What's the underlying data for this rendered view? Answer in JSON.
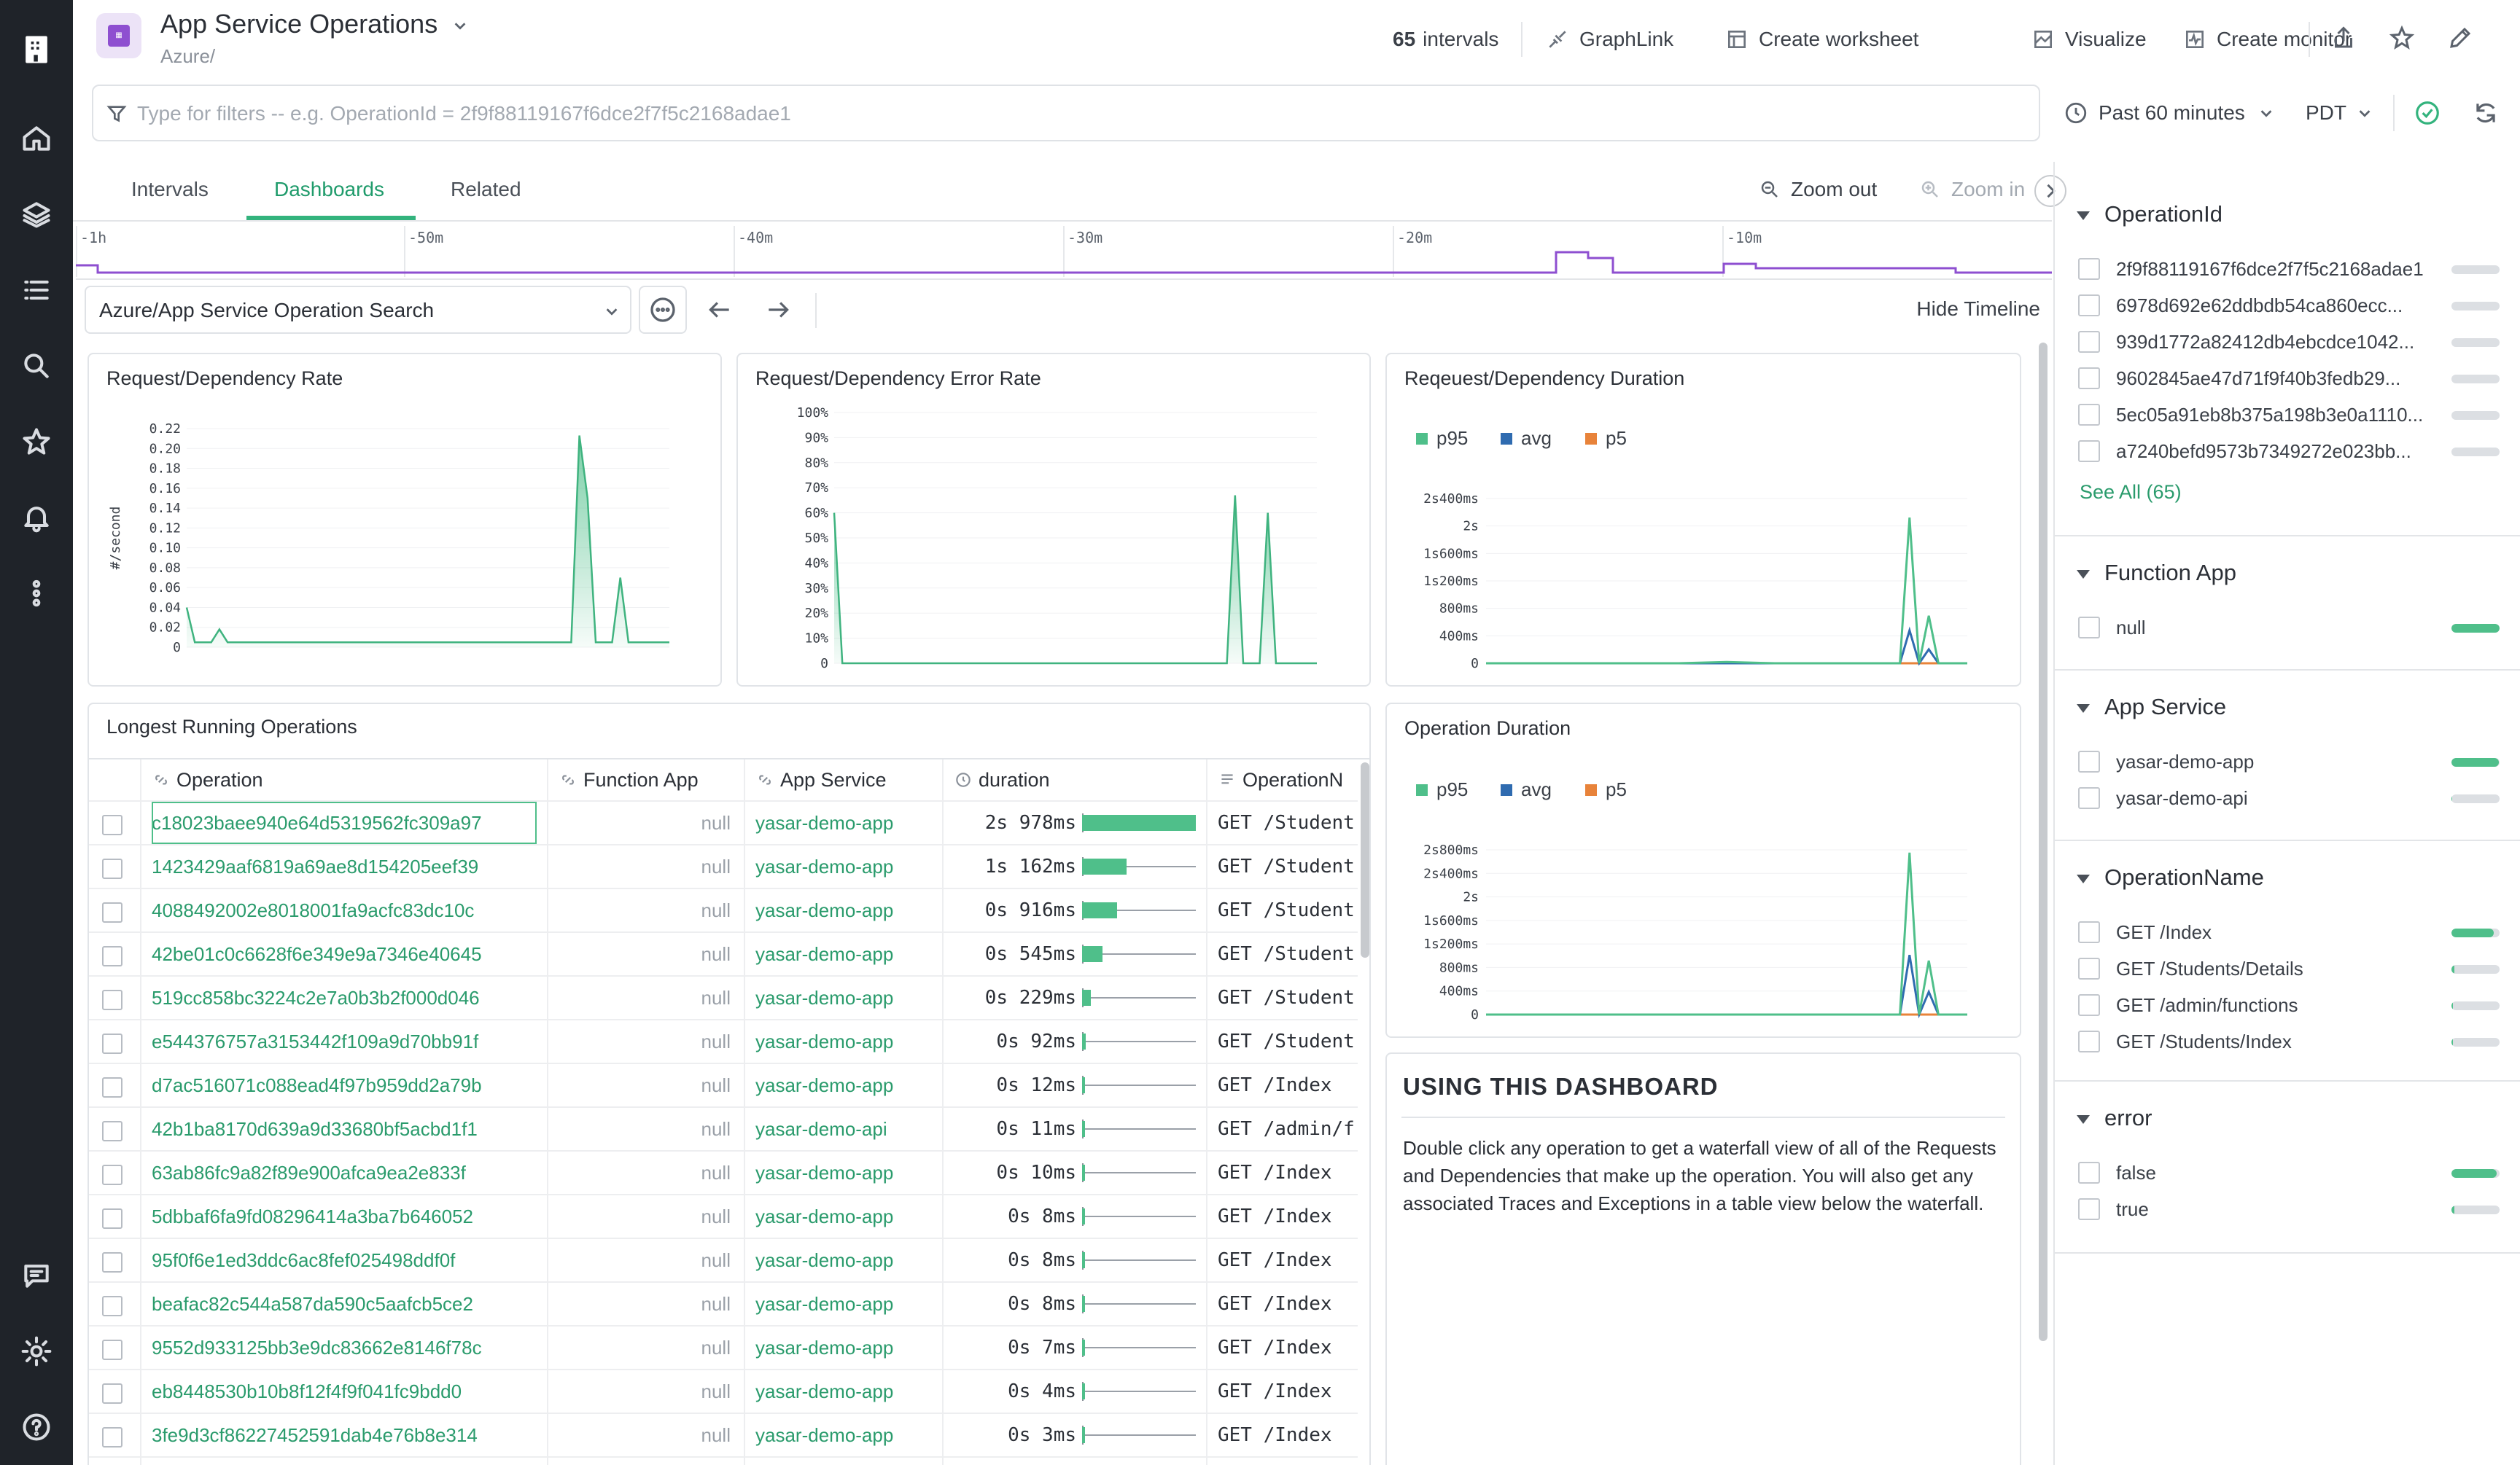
{
  "header": {
    "title": "App Service Operations",
    "subtitle": "Azure/",
    "intervals_count": "65",
    "intervals_label": "intervals",
    "graphlink": "GraphLink",
    "create_worksheet": "Create worksheet",
    "visualize": "Visualize",
    "create_monitor": "Create monitor"
  },
  "filter": {
    "placeholder": "Type for filters -- e.g. OperationId = 2f9f88119167f6dce2f7f5c2168adae1",
    "time_range": "Past 60 minutes",
    "timezone": "PDT"
  },
  "tabs": [
    {
      "label": "Intervals"
    },
    {
      "label": "Dashboards"
    },
    {
      "label": "Related"
    }
  ],
  "zoom_out": "Zoom out",
  "zoom_in": "Zoom in",
  "timeline_ticks": [
    "-1h",
    "-50m",
    "-40m",
    "-30m",
    "-20m",
    "-10m"
  ],
  "dashboard": {
    "selected": "Azure/App Service Operation Search",
    "hide_timeline": "Hide Timeline"
  },
  "charts": {
    "rate": {
      "title": "Request/Dependency Rate",
      "ylabel": "#/second",
      "yticks": [
        "0.22",
        "0.20",
        "0.18",
        "0.16",
        "0.14",
        "0.12",
        "0.10",
        "0.08",
        "0.06",
        "0.04",
        "0.02",
        "0"
      ]
    },
    "error": {
      "title": "Request/Dependency Error Rate",
      "yticks": [
        "100%",
        "90%",
        "80%",
        "70%",
        "60%",
        "50%",
        "40%",
        "30%",
        "20%",
        "10%",
        "0"
      ]
    },
    "duration": {
      "title": "Reqeuest/Dependency Duration",
      "yticks": [
        "2s400ms",
        "2s",
        "1s600ms",
        "1s200ms",
        "800ms",
        "400ms",
        "0"
      ],
      "legend": [
        "p95",
        "avg",
        "p5"
      ]
    },
    "opduration": {
      "title": "Operation Duration",
      "yticks": [
        "2s800ms",
        "2s400ms",
        "2s",
        "1s600ms",
        "1s200ms",
        "800ms",
        "400ms",
        "0"
      ],
      "legend": [
        "p95",
        "avg",
        "p5"
      ]
    }
  },
  "chart_data": [
    {
      "type": "area",
      "title": "Request/Dependency Rate",
      "ylabel": "#/second",
      "ylim": [
        0,
        0.22
      ],
      "series": [
        {
          "values": [
            0.04,
            0.005,
            0.005,
            0.005,
            0.018,
            0.005,
            0.005,
            0.005,
            0.005,
            0.005,
            0.005,
            0.005,
            0.005,
            0.005,
            0.005,
            0.005,
            0.005,
            0.005,
            0.005,
            0.005,
            0.005,
            0.005,
            0.005,
            0.005,
            0.005,
            0.005,
            0.005,
            0.005,
            0.005,
            0.005,
            0.005,
            0.005,
            0.005,
            0.005,
            0.005,
            0.005,
            0.005,
            0.005,
            0.005,
            0.005,
            0.005,
            0.005,
            0.005,
            0.005,
            0.005,
            0.005,
            0.005,
            0.005,
            0.213,
            0.15,
            0.005,
            0.005,
            0.005,
            0.07,
            0.005,
            0.005,
            0.005,
            0.005,
            0.005,
            0.005
          ]
        }
      ]
    },
    {
      "type": "area",
      "title": "Request/Dependency Error Rate",
      "ylim": [
        0,
        100
      ],
      "series": [
        {
          "values": [
            60,
            0,
            0,
            0,
            0,
            0,
            0,
            0,
            0,
            0,
            0,
            0,
            0,
            0,
            0,
            0,
            0,
            0,
            0,
            0,
            0,
            0,
            0,
            0,
            0,
            0,
            0,
            0,
            0,
            0,
            0,
            0,
            0,
            0,
            0,
            0,
            0,
            0,
            0,
            0,
            0,
            0,
            0,
            0,
            0,
            0,
            0,
            0,
            0,
            67,
            0,
            0,
            0,
            60,
            0,
            0,
            0,
            0,
            0,
            0
          ]
        }
      ]
    },
    {
      "type": "line",
      "title": "Reqeuest/Dependency Duration",
      "ylim": [
        0,
        2600
      ],
      "series": [
        {
          "name": "p95",
          "points": [
            [
              0,
              0
            ],
            [
              20,
              0
            ],
            [
              25,
              20
            ],
            [
              30,
              0
            ],
            [
              40,
              0
            ],
            [
              43,
              0
            ],
            [
              44,
              2300
            ],
            [
              45,
              0
            ],
            [
              46,
              750
            ],
            [
              47,
              0
            ],
            [
              50,
              0
            ]
          ]
        },
        {
          "name": "avg",
          "points": [
            [
              0,
              0
            ],
            [
              40,
              0
            ],
            [
              43,
              0
            ],
            [
              44,
              520
            ],
            [
              45,
              0
            ],
            [
              46,
              220
            ],
            [
              47,
              0
            ],
            [
              50,
              0
            ]
          ]
        },
        {
          "name": "p5",
          "points": [
            [
              0,
              0
            ],
            [
              50,
              0
            ]
          ]
        }
      ]
    },
    {
      "type": "line",
      "title": "Operation Duration",
      "ylim": [
        0,
        2900
      ],
      "series": [
        {
          "name": "p95",
          "points": [
            [
              0,
              0
            ],
            [
              40,
              0
            ],
            [
              43,
              0
            ],
            [
              44,
              2850
            ],
            [
              45,
              0
            ],
            [
              46,
              950
            ],
            [
              47,
              0
            ],
            [
              50,
              0
            ]
          ]
        },
        {
          "name": "avg",
          "points": [
            [
              0,
              0
            ],
            [
              40,
              0
            ],
            [
              43,
              0
            ],
            [
              44,
              1050
            ],
            [
              45,
              0
            ],
            [
              46,
              400
            ],
            [
              47,
              0
            ],
            [
              50,
              0
            ]
          ]
        },
        {
          "name": "p5",
          "points": [
            [
              0,
              0
            ],
            [
              50,
              0
            ]
          ]
        }
      ]
    }
  ],
  "table": {
    "title": "Longest Running Operations",
    "columns": [
      "Operation",
      "Function App",
      "App Service",
      "duration",
      "OperationN"
    ],
    "rows": [
      {
        "op": "c18023baee940e64d5319562fc309a97",
        "fa": "null",
        "as": "yasar-demo-app",
        "dur": "2s 978ms",
        "frac": 1.0,
        "name": "GET /Student"
      },
      {
        "op": "1423429aaf6819a69ae8d154205eef39",
        "fa": "null",
        "as": "yasar-demo-app",
        "dur": "1s 162ms",
        "frac": 0.39,
        "name": "GET /Student"
      },
      {
        "op": "4088492002e8018001fa9acfc83dc10c",
        "fa": "null",
        "as": "yasar-demo-app",
        "dur": "0s 916ms",
        "frac": 0.31,
        "name": "GET /Student"
      },
      {
        "op": "42be01c0c6628f6e349e9a7346e40645",
        "fa": "null",
        "as": "yasar-demo-app",
        "dur": "0s 545ms",
        "frac": 0.18,
        "name": "GET /Student"
      },
      {
        "op": "519cc858bc3224c2e7a0b3b2f000d046",
        "fa": "null",
        "as": "yasar-demo-app",
        "dur": "0s 229ms",
        "frac": 0.08,
        "name": "GET /Student"
      },
      {
        "op": "e544376757a3153442f109a9d70bb91f",
        "fa": "null",
        "as": "yasar-demo-app",
        "dur": "0s 92ms",
        "frac": 0.03,
        "name": "GET /Student"
      },
      {
        "op": "d7ac516071c088ead4f97b959dd2a79b",
        "fa": "null",
        "as": "yasar-demo-app",
        "dur": "0s 12ms",
        "frac": 0.0,
        "name": "GET /Index"
      },
      {
        "op": "42b1ba8170d639a9d33680bf5acbd1f1",
        "fa": "null",
        "as": "yasar-demo-api",
        "dur": "0s 11ms",
        "frac": 0.0,
        "name": "GET /admin/f"
      },
      {
        "op": "63ab86fc9a82f89e900afca9ea2e833f",
        "fa": "null",
        "as": "yasar-demo-app",
        "dur": "0s 10ms",
        "frac": 0.0,
        "name": "GET /Index"
      },
      {
        "op": "5dbbaf6fa9fd08296414a3ba7b646052",
        "fa": "null",
        "as": "yasar-demo-app",
        "dur": "0s 8ms",
        "frac": 0.0,
        "name": "GET /Index"
      },
      {
        "op": "95f0f6e1ed3ddc6ac8fef025498ddf0f",
        "fa": "null",
        "as": "yasar-demo-app",
        "dur": "0s 8ms",
        "frac": 0.0,
        "name": "GET /Index"
      },
      {
        "op": "beafac82c544a587da590c5aafcb5ce2",
        "fa": "null",
        "as": "yasar-demo-app",
        "dur": "0s 8ms",
        "frac": 0.0,
        "name": "GET /Index"
      },
      {
        "op": "9552d933125bb3e9dc83662e8146f78c",
        "fa": "null",
        "as": "yasar-demo-app",
        "dur": "0s 7ms",
        "frac": 0.0,
        "name": "GET /Index"
      },
      {
        "op": "eb8448530b10b8f12f4f9f041fc9bdd0",
        "fa": "null",
        "as": "yasar-demo-app",
        "dur": "0s 4ms",
        "frac": 0.0,
        "name": "GET /Index"
      },
      {
        "op": "3fe9d3cf86227452591dab4e76b8e314",
        "fa": "null",
        "as": "yasar-demo-app",
        "dur": "0s 3ms",
        "frac": 0.0,
        "name": "GET /Index"
      }
    ]
  },
  "usage": {
    "title": "USING THIS DASHBOARD",
    "body": "Double click any operation to get a waterfall view of all of the Requests and Dependencies that make up the operation. You will also get any associated Traces and Exceptions in a table view below the waterfall."
  },
  "sidebar": {
    "sections": [
      {
        "title": "OperationId",
        "items": [
          {
            "label": "2f9f88119167f6dce2f7f5c2168adae1",
            "frac": 0.0
          },
          {
            "label": "6978d692e62ddbdb54ca860ecc...",
            "frac": 0.0
          },
          {
            "label": "939d1772a82412db4ebcdce1042...",
            "frac": 0.0
          },
          {
            "label": "9602845ae47d71f9f40b3fedb29...",
            "frac": 0.0
          },
          {
            "label": "5ec05a91eb8b375a198b3e0a1110...",
            "frac": 0.0
          },
          {
            "label": "a7240befd9573b7349272e023bb...",
            "frac": 0.0
          }
        ],
        "see_all": "See All (65)"
      },
      {
        "title": "Function App",
        "items": [
          {
            "label": "null",
            "frac": 1.0
          }
        ]
      },
      {
        "title": "App Service",
        "items": [
          {
            "label": "yasar-demo-app",
            "frac": 0.98
          },
          {
            "label": "yasar-demo-api",
            "frac": 0.02
          }
        ]
      },
      {
        "title": "OperationName",
        "items": [
          {
            "label": "GET /Index",
            "frac": 0.88
          },
          {
            "label": "GET /Students/Details",
            "frac": 0.06
          },
          {
            "label": "GET /admin/functions",
            "frac": 0.03
          },
          {
            "label": "GET /Students/Index",
            "frac": 0.03
          }
        ]
      },
      {
        "title": "error",
        "items": [
          {
            "label": "false",
            "frac": 0.94
          },
          {
            "label": "true",
            "frac": 0.06
          }
        ]
      }
    ]
  },
  "colors": {
    "accent": "#1f9b6b",
    "p95": "#4fbf8a",
    "avg": "#2f6bb0",
    "p5": "#e8833a",
    "purple": "#8e4fd0"
  }
}
